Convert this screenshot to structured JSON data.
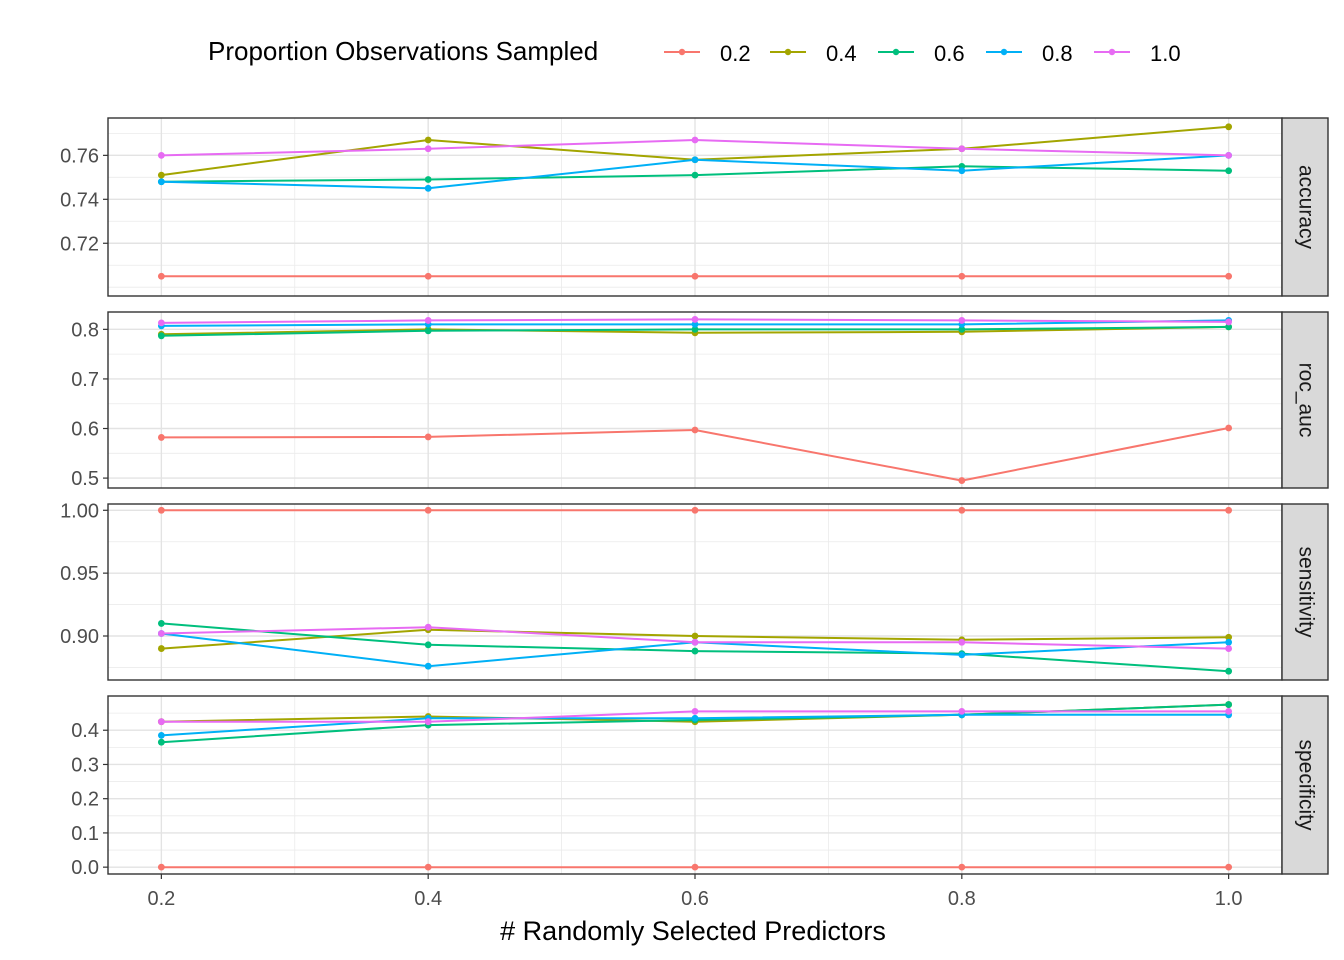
{
  "chart_data": {
    "type": "line",
    "xlabel": "# Randomly Selected Predictors",
    "legend": {
      "title": "Proportion Observations Sampled",
      "placement": "top"
    },
    "x": [
      0.2,
      0.4,
      0.6,
      0.8,
      1.0
    ],
    "x_tick_labels": [
      "0.2",
      "0.4",
      "0.6",
      "0.8",
      "1.0"
    ],
    "xlim": [
      0.16,
      1.04
    ],
    "grid": true,
    "series_names": [
      "0.2",
      "0.4",
      "0.6",
      "0.8",
      "1.0"
    ],
    "series_colors": [
      "#F8766D",
      "#A3A500",
      "#00BF7D",
      "#00B0F6",
      "#E76BF3"
    ],
    "panels": [
      {
        "strip": "accuracy",
        "ylim": [
          0.696,
          0.777
        ],
        "yticks": [
          0.72,
          0.74,
          0.76
        ],
        "ytick_labels": [
          "0.72",
          "0.74",
          "0.76"
        ],
        "ygrid_minor": [
          0.7,
          0.71,
          0.73,
          0.75,
          0.77
        ],
        "series": [
          {
            "name": "0.2",
            "values": [
              0.705,
              0.705,
              0.705,
              0.705,
              0.705
            ]
          },
          {
            "name": "0.4",
            "values": [
              0.751,
              0.767,
              0.758,
              0.763,
              0.773
            ]
          },
          {
            "name": "0.6",
            "values": [
              0.748,
              0.749,
              0.751,
              0.755,
              0.753
            ]
          },
          {
            "name": "0.8",
            "values": [
              0.748,
              0.745,
              0.758,
              0.753,
              0.76
            ]
          },
          {
            "name": "1.0",
            "values": [
              0.76,
              0.763,
              0.767,
              0.763,
              0.76
            ]
          }
        ]
      },
      {
        "strip": "roc_auc",
        "ylim": [
          0.48,
          0.835
        ],
        "yticks": [
          0.5,
          0.6,
          0.7,
          0.8
        ],
        "ytick_labels": [
          "0.5",
          "0.6",
          "0.7",
          "0.8"
        ],
        "ygrid_minor": [
          0.55,
          0.65,
          0.75
        ],
        "series": [
          {
            "name": "0.2",
            "values": [
              0.582,
              0.583,
              0.597,
              0.495,
              0.601
            ]
          },
          {
            "name": "0.4",
            "values": [
              0.79,
              0.8,
              0.793,
              0.795,
              0.805
            ]
          },
          {
            "name": "0.6",
            "values": [
              0.787,
              0.797,
              0.8,
              0.8,
              0.805
            ]
          },
          {
            "name": "0.8",
            "values": [
              0.807,
              0.81,
              0.81,
              0.81,
              0.818
            ]
          },
          {
            "name": "1.0",
            "values": [
              0.813,
              0.818,
              0.82,
              0.818,
              0.815
            ]
          }
        ]
      },
      {
        "strip": "sensitivity",
        "ylim": [
          0.865,
          1.005
        ],
        "yticks": [
          0.9,
          0.95,
          1.0
        ],
        "ytick_labels": [
          "0.90",
          "0.95",
          "1.00"
        ],
        "ygrid_minor": [
          0.875,
          0.925,
          0.975
        ],
        "series": [
          {
            "name": "0.2",
            "values": [
              1.0,
              1.0,
              1.0,
              1.0,
              1.0
            ]
          },
          {
            "name": "0.4",
            "values": [
              0.89,
              0.905,
              0.9,
              0.897,
              0.899
            ]
          },
          {
            "name": "0.6",
            "values": [
              0.91,
              0.893,
              0.888,
              0.886,
              0.872
            ]
          },
          {
            "name": "0.8",
            "values": [
              0.902,
              0.876,
              0.895,
              0.885,
              0.895
            ]
          },
          {
            "name": "1.0",
            "values": [
              0.902,
              0.907,
              0.895,
              0.895,
              0.89
            ]
          }
        ]
      },
      {
        "strip": "specificity",
        "ylim": [
          -0.02,
          0.5
        ],
        "yticks": [
          0.0,
          0.1,
          0.2,
          0.3,
          0.4
        ],
        "ytick_labels": [
          "0.0",
          "0.1",
          "0.2",
          "0.3",
          "0.4"
        ],
        "ygrid_minor": [
          0.05,
          0.15,
          0.25,
          0.35,
          0.45
        ],
        "series": [
          {
            "name": "0.2",
            "values": [
              0.0,
              0.0,
              0.0,
              0.0,
              0.0
            ]
          },
          {
            "name": "0.4",
            "values": [
              0.425,
              0.44,
              0.425,
              0.445,
              0.475
            ]
          },
          {
            "name": "0.6",
            "values": [
              0.365,
              0.415,
              0.43,
              0.445,
              0.475
            ]
          },
          {
            "name": "0.8",
            "values": [
              0.385,
              0.435,
              0.435,
              0.445,
              0.445
            ]
          },
          {
            "name": "1.0",
            "values": [
              0.425,
              0.425,
              0.455,
              0.455,
              0.455
            ]
          }
        ]
      }
    ]
  }
}
